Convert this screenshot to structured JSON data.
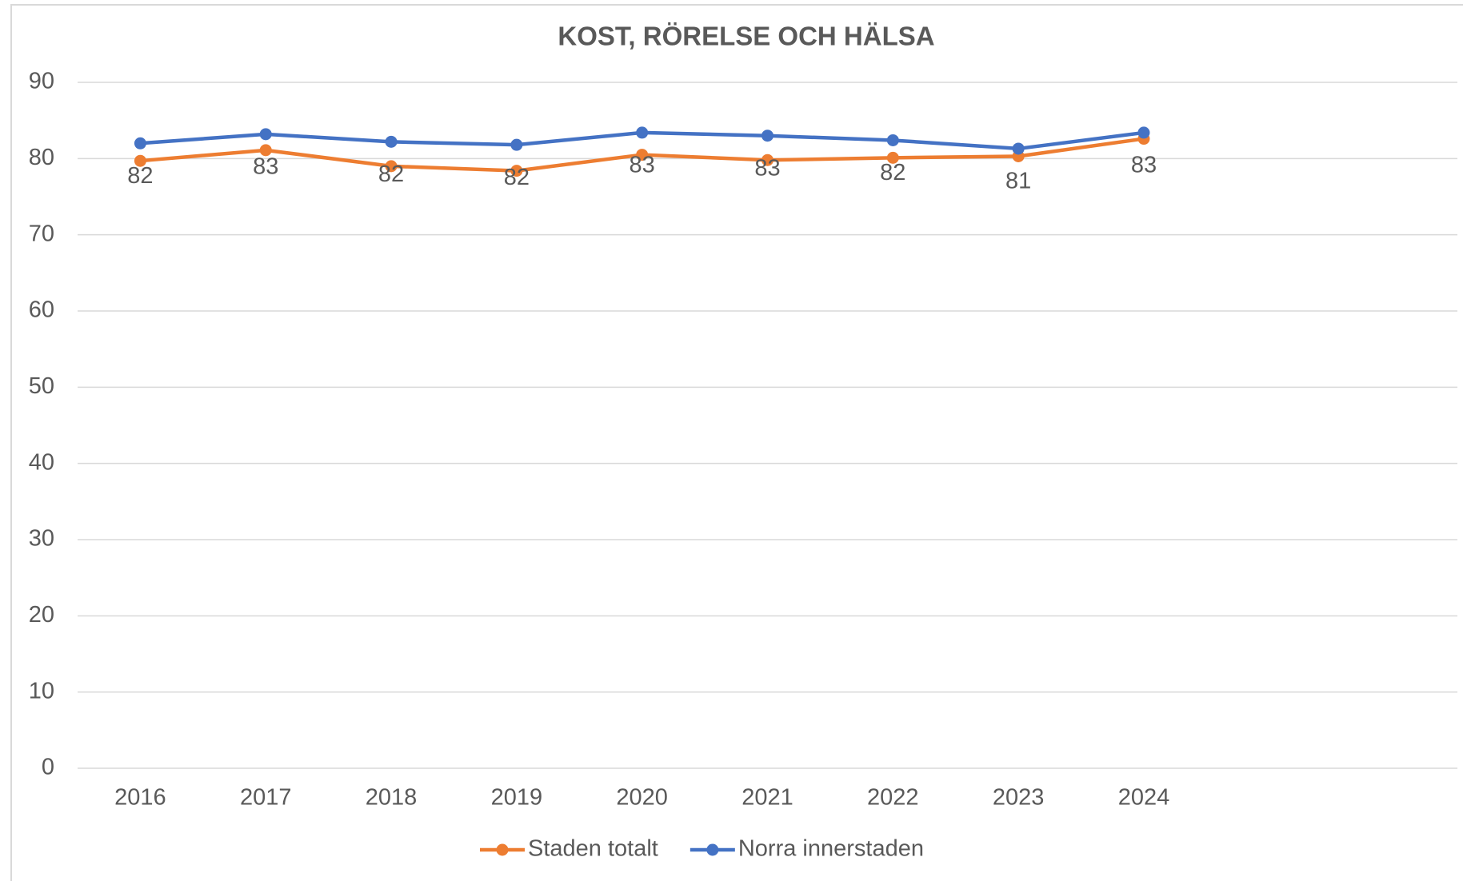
{
  "chart_data": {
    "type": "line",
    "title": "KOST, RÖRELSE OCH HÄLSA",
    "categories": [
      "2016",
      "2017",
      "2018",
      "2019",
      "2020",
      "2021",
      "2022",
      "2023",
      "2024",
      null,
      null
    ],
    "series": [
      {
        "name": "Staden totalt",
        "color": "#ed7d31",
        "values": [
          79.7,
          81.1,
          79.0,
          78.4,
          80.5,
          79.8,
          80.1,
          80.3,
          82.6,
          null,
          null
        ]
      },
      {
        "name": "Norra innerstaden",
        "color": "#4472c4",
        "values": [
          82.0,
          83.2,
          82.2,
          81.8,
          83.4,
          83.0,
          82.4,
          81.3,
          83.4,
          null,
          null
        ],
        "value_labels": [
          "82",
          "83",
          "82",
          "82",
          "83",
          "83",
          "82",
          "81",
          "83",
          null,
          null
        ]
      }
    ],
    "ylim": [
      0,
      90
    ],
    "yticks": [
      0,
      10,
      20,
      30,
      40,
      50,
      60,
      70,
      80,
      90
    ],
    "grid": true,
    "legend": "bottom"
  }
}
